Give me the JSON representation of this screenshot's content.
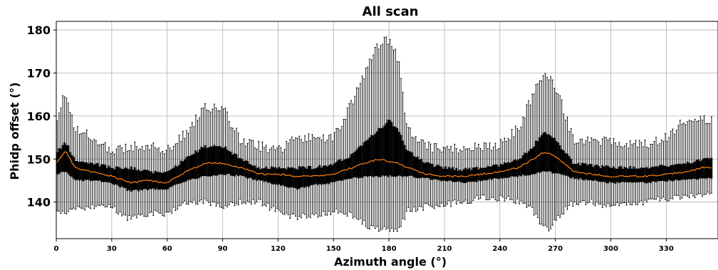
{
  "chart_data": {
    "type": "box",
    "title": "All scan",
    "xlabel": "Azimuth angle (°)",
    "ylabel": "Phidp offset (°)",
    "xlim": [
      0,
      355
    ],
    "ylim": [
      131.5,
      182
    ],
    "xticks": [
      "0",
      "30",
      "60",
      "90",
      "120",
      "150",
      "180",
      "210",
      "240",
      "270",
      "300",
      "330"
    ],
    "yticks": [
      "140",
      "150",
      "160",
      "170",
      "180"
    ],
    "grid": true,
    "median_color": "#ff7f0e",
    "box_color": "#000000",
    "profile": {
      "azimuth": [
        0,
        5,
        10,
        20,
        30,
        40,
        50,
        60,
        70,
        80,
        90,
        100,
        110,
        120,
        130,
        140,
        150,
        160,
        170,
        175,
        180,
        185,
        190,
        200,
        210,
        220,
        230,
        240,
        250,
        258,
        263,
        267,
        272,
        280,
        290,
        300,
        310,
        320,
        330,
        340,
        350,
        355
      ],
      "median": [
        149,
        152,
        148,
        147,
        146,
        144.5,
        145,
        144.5,
        147,
        149,
        149,
        148,
        146.5,
        146.5,
        146,
        146,
        146.5,
        148,
        149.5,
        150,
        149.5,
        149,
        148,
        146.5,
        146,
        146,
        146.5,
        147,
        148,
        150,
        151.5,
        151.5,
        150,
        147,
        146.5,
        146,
        146,
        146,
        146.5,
        147,
        148,
        148
      ],
      "q1": [
        146.5,
        147,
        145,
        145,
        144.5,
        142.5,
        143,
        143,
        145,
        146,
        146.5,
        146,
        145,
        144,
        143,
        144,
        144.5,
        145.5,
        146,
        146,
        146,
        146,
        146,
        145.5,
        145,
        144.5,
        145,
        145.5,
        146,
        146.5,
        147,
        147,
        146.5,
        145.5,
        145,
        144.5,
        144.5,
        144.5,
        145,
        145,
        145.5,
        145.5
      ],
      "q3": [
        151.5,
        154,
        150,
        149,
        148,
        148,
        147,
        147,
        150,
        153,
        153,
        150,
        148,
        148,
        148,
        148,
        149,
        151,
        155,
        157,
        159,
        157,
        152,
        149,
        148,
        147.5,
        148,
        148.5,
        150,
        153,
        156,
        156,
        153.5,
        149,
        148.5,
        148,
        148,
        148,
        148.5,
        149,
        150,
        150
      ],
      "whislo": [
        138.5,
        137,
        138.5,
        139,
        139,
        136,
        137.5,
        137.5,
        140,
        140,
        139,
        140,
        140,
        138,
        136.5,
        137,
        138,
        137,
        134,
        133.5,
        133.5,
        133.5,
        138,
        139,
        139.5,
        140,
        141,
        141,
        140,
        138,
        134,
        134,
        137,
        140,
        140,
        139,
        139.5,
        140,
        141,
        141,
        142,
        142
      ],
      "whishi": [
        159,
        166,
        157,
        155,
        152,
        153,
        153,
        152,
        156,
        162,
        162,
        154,
        153,
        152,
        155,
        155,
        155,
        163,
        173,
        177,
        178,
        173,
        157,
        153,
        152,
        152.5,
        152.5,
        153.5,
        157,
        165,
        169.5,
        169,
        165,
        154,
        154,
        154,
        153.5,
        153.5,
        155,
        159,
        159,
        159
      ]
    }
  }
}
